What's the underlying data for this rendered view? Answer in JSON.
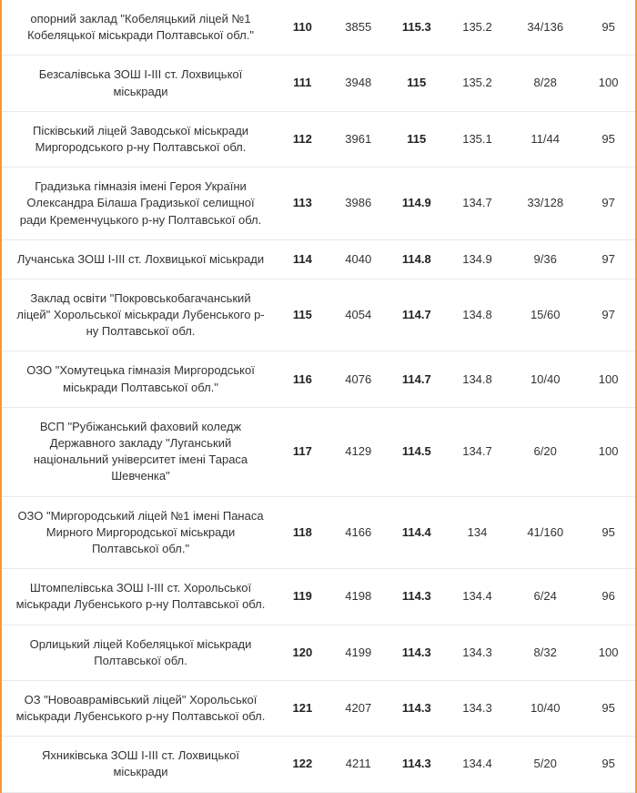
{
  "table": {
    "rows": [
      {
        "name": "опорний заклад \"Кобеляцький ліцей №1 Кобеляцької міськради Полтавської обл.\"",
        "rank": "110",
        "num2": "3855",
        "score": "115.3",
        "val4": "135.2",
        "ratio": "34/136",
        "last": "95"
      },
      {
        "name": "Безсалівська ЗОШ І-ІІІ ст. Лохвицької міськради",
        "rank": "111",
        "num2": "3948",
        "score": "115",
        "val4": "135.2",
        "ratio": "8/28",
        "last": "100"
      },
      {
        "name": "Пісківський ліцей Заводської міськради Миргородського р-ну Полтавської обл.",
        "rank": "112",
        "num2": "3961",
        "score": "115",
        "val4": "135.1",
        "ratio": "11/44",
        "last": "95"
      },
      {
        "name": "Градизька гімназія імені Героя України Олександра Білаша Градизької селищної ради Кременчуцького р-ну Полтавської обл.",
        "rank": "113",
        "num2": "3986",
        "score": "114.9",
        "val4": "134.7",
        "ratio": "33/128",
        "last": "97"
      },
      {
        "name": "Лучанська ЗОШ І-ІІІ ст. Лохвицької міськради",
        "rank": "114",
        "num2": "4040",
        "score": "114.8",
        "val4": "134.9",
        "ratio": "9/36",
        "last": "97"
      },
      {
        "name": "Заклад освіти \"Покровськобагачанський ліцей\" Хорольської міськради Лубенського р-ну Полтавської обл.",
        "rank": "115",
        "num2": "4054",
        "score": "114.7",
        "val4": "134.8",
        "ratio": "15/60",
        "last": "97"
      },
      {
        "name": "ОЗО \"Хомутецька гімназія Миргородської міськради Полтавської обл.\"",
        "rank": "116",
        "num2": "4076",
        "score": "114.7",
        "val4": "134.8",
        "ratio": "10/40",
        "last": "100"
      },
      {
        "name": "ВСП \"Рубіжанський фаховий коледж Державного закладу \"Луганський національний університет імені Тараса Шевченка\"",
        "rank": "117",
        "num2": "4129",
        "score": "114.5",
        "val4": "134.7",
        "ratio": "6/20",
        "last": "100"
      },
      {
        "name": "ОЗО \"Миргородський ліцей №1 імені Панаса Мирного Миргородської міськради Полтавської обл.\"",
        "rank": "118",
        "num2": "4166",
        "score": "114.4",
        "val4": "134",
        "ratio": "41/160",
        "last": "95"
      },
      {
        "name": "Штомпелівська ЗОШ І-ІІІ ст. Хорольської міськради Лубенського р-ну Полтавської обл.",
        "rank": "119",
        "num2": "4198",
        "score": "114.3",
        "val4": "134.4",
        "ratio": "6/24",
        "last": "96"
      },
      {
        "name": "Орлицький ліцей Кобеляцької міськради Полтавської обл.",
        "rank": "120",
        "num2": "4199",
        "score": "114.3",
        "val4": "134.3",
        "ratio": "8/32",
        "last": "100"
      },
      {
        "name": "ОЗ \"Новоаврамівський ліцей\" Хорольської міськради Лубенського р-ну Полтавської обл.",
        "rank": "121",
        "num2": "4207",
        "score": "114.3",
        "val4": "134.3",
        "ratio": "10/40",
        "last": "95"
      },
      {
        "name": "Яхниківська ЗОШ І-ІІІ ст. Лохвицької міськради",
        "rank": "122",
        "num2": "4211",
        "score": "114.3",
        "val4": "134.4",
        "ratio": "5/20",
        "last": "95"
      }
    ],
    "border_color": "#f89838",
    "row_border_color": "#e8e8e8",
    "text_color": "#333",
    "bold_text_color": "#222",
    "font_size": 13
  }
}
